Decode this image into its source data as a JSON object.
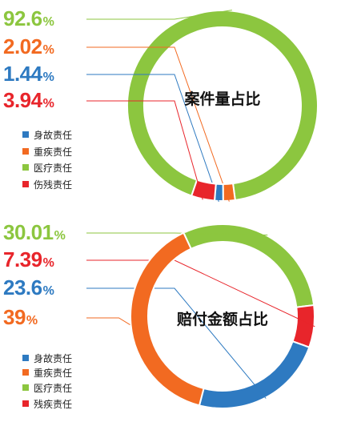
{
  "colors": {
    "blue": "#2e7ac1",
    "orange": "#f26a21",
    "green": "#8cc63f",
    "red": "#e8252b"
  },
  "chart_data": [
    {
      "type": "pie",
      "donut": true,
      "title": "案件量占比",
      "legend_placement": "bottom-left",
      "slices": [
        {
          "label": "医疗责任",
          "value_text": "92.6",
          "value": 92.6,
          "color": "#8cc63f"
        },
        {
          "label": "重疾责任",
          "value_text": "2.02",
          "value": 2.02,
          "color": "#f26a21"
        },
        {
          "label": "身故责任",
          "value_text": "1.44",
          "value": 1.44,
          "color": "#2e7ac1"
        },
        {
          "label": "伤残责任",
          "value_text": "3.94",
          "value": 3.94,
          "color": "#e8252b"
        }
      ],
      "legend": [
        {
          "label": "身故责任",
          "color": "#2e7ac1"
        },
        {
          "label": "重疾责任",
          "color": "#f26a21"
        },
        {
          "label": "医疗责任",
          "color": "#8cc63f"
        },
        {
          "label": "伤残责任",
          "color": "#e8252b"
        }
      ],
      "unit": "%"
    },
    {
      "type": "pie",
      "donut": true,
      "title": "赔付金额占比",
      "legend_placement": "bottom-left",
      "slices": [
        {
          "label": "医疗责任",
          "value_text": "30.01",
          "value": 30.01,
          "color": "#8cc63f"
        },
        {
          "label": "残疾责任",
          "value_text": "7.39",
          "value": 7.39,
          "color": "#e8252b"
        },
        {
          "label": "身故责任",
          "value_text": "23.6",
          "value": 23.6,
          "color": "#2e7ac1"
        },
        {
          "label": "重疾责任",
          "value_text": "39",
          "value": 39,
          "color": "#f26a21"
        }
      ],
      "legend": [
        {
          "label": "身故责任",
          "color": "#2e7ac1"
        },
        {
          "label": "重疾责任",
          "color": "#f26a21"
        },
        {
          "label": "医疗责任",
          "color": "#8cc63f"
        },
        {
          "label": "残疾责任",
          "color": "#e8252b"
        }
      ],
      "unit": "%"
    }
  ]
}
